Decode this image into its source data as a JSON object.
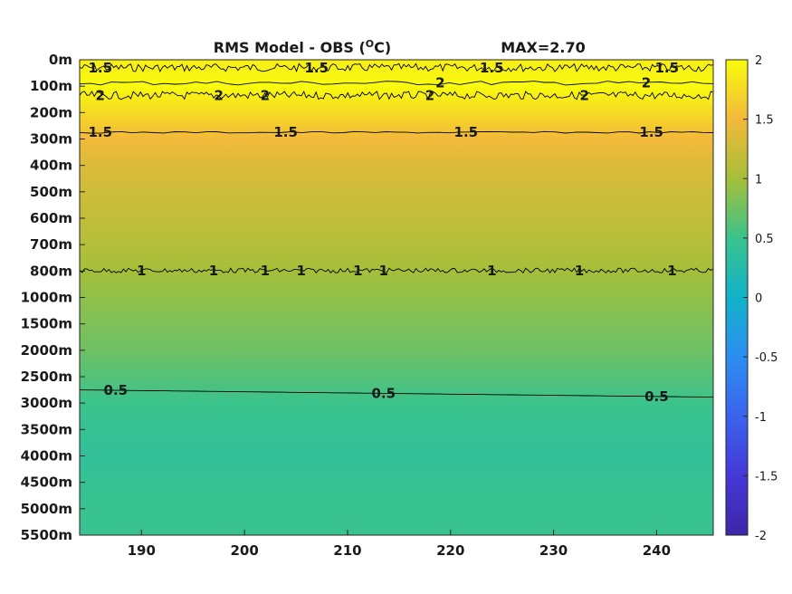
{
  "chart_data": {
    "type": "heatmap",
    "title": "RMS Model - OBS (°C)",
    "title_parts": {
      "main": "RMS Model - OBS (",
      "sup": "O",
      "unit": "C)"
    },
    "max_label": "MAX=2.70",
    "xlabel": "",
    "ylabel": "",
    "x_ticks": [
      190,
      200,
      210,
      220,
      230,
      240
    ],
    "xlim": [
      184,
      245.5
    ],
    "y_levels": [
      "0m",
      "100m",
      "200m",
      "300m",
      "400m",
      "500m",
      "600m",
      "700m",
      "800m",
      "1000m",
      "1500m",
      "2000m",
      "2500m",
      "3000m",
      "3500m",
      "4000m",
      "4500m",
      "5000m",
      "5500m"
    ],
    "y_reversed": true,
    "colorbar": {
      "ticks": [
        2,
        1.5,
        1,
        0.5,
        0,
        -0.5,
        -1,
        -1.5,
        -2
      ],
      "tick_labels": [
        "2",
        "1.5",
        "1",
        "0.5",
        "0",
        "-0.5",
        "-1",
        "-1.5",
        "-2"
      ],
      "clim": [
        -2,
        2
      ],
      "colormap": "parula"
    },
    "field_by_level": [
      {
        "level": "0m",
        "value": 1.9
      },
      {
        "level": "100m",
        "value": 2.05
      },
      {
        "level": "200m",
        "value": 1.75
      },
      {
        "level": "300m",
        "value": 1.5
      },
      {
        "level": "400m",
        "value": 1.35
      },
      {
        "level": "500m",
        "value": 1.25
      },
      {
        "level": "600m",
        "value": 1.18
      },
      {
        "level": "700m",
        "value": 1.1
      },
      {
        "level": "800m",
        "value": 1.0
      },
      {
        "level": "1000m",
        "value": 0.9
      },
      {
        "level": "1500m",
        "value": 0.82
      },
      {
        "level": "2000m",
        "value": 0.74
      },
      {
        "level": "2500m",
        "value": 0.62
      },
      {
        "level": "3000m",
        "value": 0.5
      },
      {
        "level": "3500m",
        "value": 0.44
      },
      {
        "level": "4000m",
        "value": 0.4
      },
      {
        "level": "4500m",
        "value": 0.44
      },
      {
        "level": "5000m",
        "value": 0.47
      },
      {
        "level": "5500m",
        "value": 0.47
      }
    ],
    "contours": [
      {
        "level": 1.5,
        "label": "1.5",
        "level_index": 0.3,
        "noise": 0.15,
        "labels_at": [
          186,
          207,
          224,
          241
        ]
      },
      {
        "level": 2,
        "label": "2",
        "level_index": 0.88,
        "noise": 0.08,
        "labels_at": [
          219,
          239
        ]
      },
      {
        "level": 2,
        "label": "2",
        "level_index": 1.35,
        "noise": 0.15,
        "labels_at": [
          186,
          197.5,
          202,
          218,
          233
        ]
      },
      {
        "level": 1.5,
        "label": "1.5",
        "level_index": 2.75,
        "noise": 0.03,
        "labels_at": [
          186,
          204,
          221.5,
          239.5
        ]
      },
      {
        "level": 1,
        "label": "1",
        "level_index": 7.98,
        "noise": 0.09,
        "labels_at": [
          190,
          197,
          202,
          205.5,
          211,
          213.5,
          224,
          232.5,
          241.5
        ]
      },
      {
        "level": 0.5,
        "label": "0.5",
        "level_index": 12.5,
        "noise": 0.0,
        "labels_at": [
          187.5,
          213.5,
          240
        ]
      }
    ]
  }
}
